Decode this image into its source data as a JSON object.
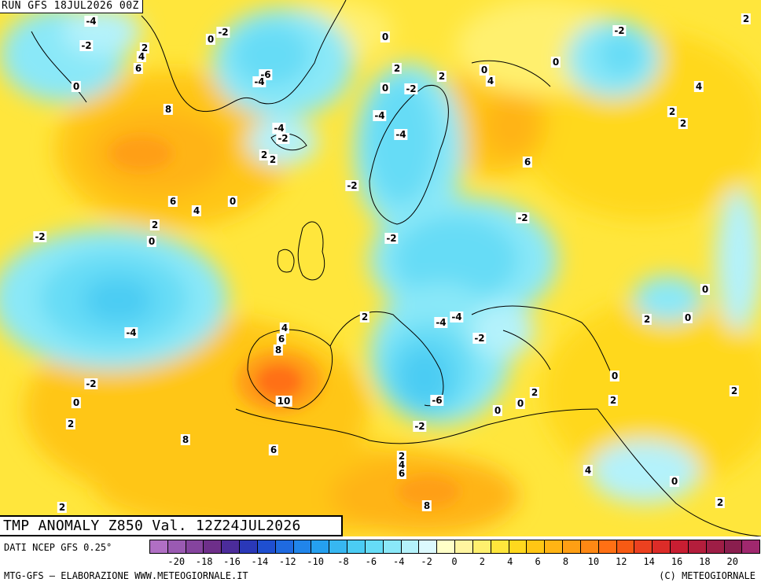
{
  "header": {
    "run_label": "RUN GFS 18JUL2026 00Z"
  },
  "title": "TMP ANOMALY Z850 Val. 12Z24JUL2026",
  "footer": {
    "data_source": "DATI NCEP GFS 0.25°",
    "credit_left": "MTG-GFS — ELABORAZIONE WWW.METEOGIORNALE.IT",
    "credit_right": "(C) METEOGIORNALE"
  },
  "legend": {
    "colors": [
      "#b06fc4",
      "#9a5ab2",
      "#85449e",
      "#6e2f8a",
      "#4b2c9a",
      "#2a38b8",
      "#1f4fd0",
      "#1f6ae0",
      "#2185ea",
      "#25a0ef",
      "#37b7f1",
      "#4bccf3",
      "#66dcf6",
      "#8ae8f8",
      "#b4f2fb",
      "#dcf9fd",
      "#ffffc8",
      "#fff5a0",
      "#fff06e",
      "#ffe63c",
      "#ffd81e",
      "#ffc614",
      "#ffb414",
      "#ff9f14",
      "#ff8814",
      "#ff7014",
      "#f75a14",
      "#ec4120",
      "#dc2c28",
      "#c81e32",
      "#b41e3c",
      "#9e1e46",
      "#8a1e4e",
      "#a0286e"
    ],
    "ticks": [
      "-20",
      "-18",
      "-16",
      "-14",
      "-12",
      "-10",
      "-8",
      "-6",
      "-4",
      "-2",
      "0",
      "2",
      "4",
      "6",
      "8",
      "10",
      "12",
      "14",
      "16",
      "18",
      "20"
    ]
  },
  "iso_labels": [
    {
      "t": "-4"
    },
    {
      "t": "-2"
    },
    {
      "t": "0"
    },
    {
      "t": "-2"
    },
    {
      "t": "2"
    },
    {
      "t": "4"
    },
    {
      "t": "6"
    },
    {
      "t": "0"
    },
    {
      "t": "8"
    },
    {
      "t": "-6"
    },
    {
      "t": "-4"
    },
    {
      "t": "0"
    },
    {
      "t": "2"
    },
    {
      "t": "0"
    },
    {
      "t": "-2"
    },
    {
      "t": "2"
    },
    {
      "t": "0"
    },
    {
      "t": "4"
    },
    {
      "t": "0"
    },
    {
      "t": "-2"
    },
    {
      "t": "-2"
    },
    {
      "t": "2"
    },
    {
      "t": "4"
    },
    {
      "t": "2"
    },
    {
      "t": "2"
    },
    {
      "t": "-4"
    },
    {
      "t": "-2"
    },
    {
      "t": "-4"
    },
    {
      "t": "-4"
    },
    {
      "t": "2"
    },
    {
      "t": "2"
    },
    {
      "t": "6"
    },
    {
      "t": "6"
    },
    {
      "t": "4"
    },
    {
      "t": "0"
    },
    {
      "t": "2"
    },
    {
      "t": "0"
    },
    {
      "t": "-2"
    },
    {
      "t": "-2"
    },
    {
      "t": "-2"
    },
    {
      "t": "-2"
    },
    {
      "t": "-4"
    },
    {
      "t": "0"
    },
    {
      "t": "2"
    },
    {
      "t": "0"
    },
    {
      "t": "4"
    },
    {
      "t": "6"
    },
    {
      "t": "8"
    },
    {
      "t": "-4"
    },
    {
      "t": "-4"
    },
    {
      "t": "-2"
    },
    {
      "t": "2"
    },
    {
      "t": "0"
    },
    {
      "t": "2"
    },
    {
      "t": "2"
    },
    {
      "t": "-2"
    },
    {
      "t": "0"
    },
    {
      "t": "2"
    },
    {
      "t": "10"
    },
    {
      "t": "8"
    },
    {
      "t": "-6"
    },
    {
      "t": "0"
    },
    {
      "t": "0"
    },
    {
      "t": "2"
    },
    {
      "t": "-2"
    },
    {
      "t": "6"
    },
    {
      "t": "2"
    },
    {
      "t": "4"
    },
    {
      "t": "6"
    },
    {
      "t": "4"
    },
    {
      "t": "0"
    },
    {
      "t": "2"
    },
    {
      "t": "8"
    },
    {
      "t": "2"
    }
  ]
}
